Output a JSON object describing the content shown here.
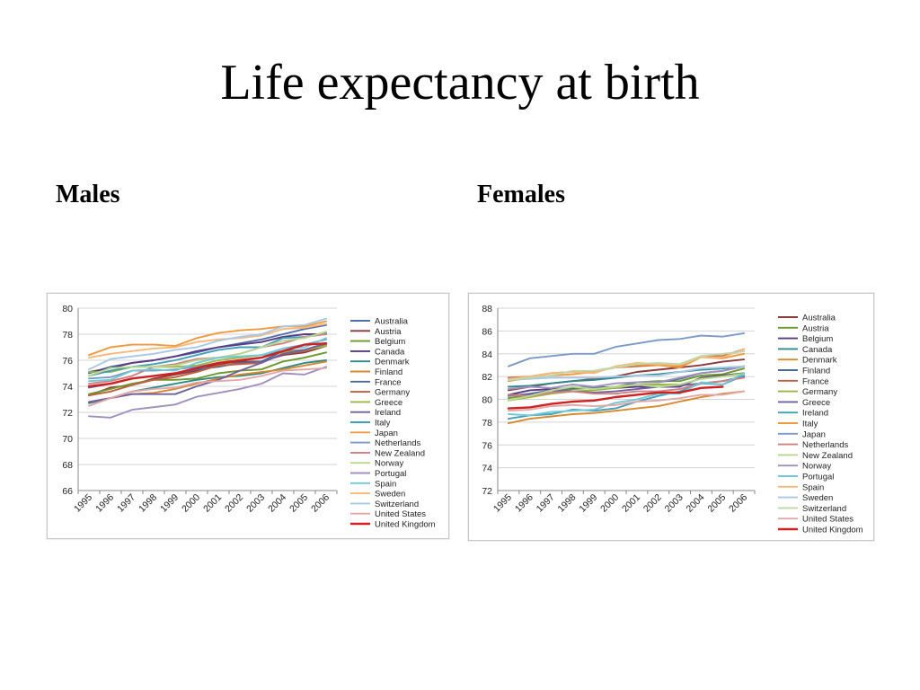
{
  "slide": {
    "title": "Life expectancy at birth",
    "males_heading": "Males",
    "females_heading": "Females"
  },
  "chart_data": [
    {
      "type": "line",
      "panel": "Males",
      "title": "",
      "xlabel": "",
      "ylabel": "",
      "x": [
        "1995",
        "1996",
        "1997",
        "1998",
        "1999",
        "2000",
        "2001",
        "2002",
        "2003",
        "2004",
        "2005",
        "2006"
      ],
      "ylim": [
        66,
        80
      ],
      "yticks": [
        66,
        68,
        70,
        72,
        74,
        76,
        78,
        80
      ],
      "grid": true,
      "legend": "right",
      "series": [
        {
          "name": "Australia",
          "color": "#4f6fad",
          "values": [
            75.0,
            75.5,
            75.8,
            76.0,
            76.3,
            76.6,
            77.0,
            77.3,
            77.6,
            78.0,
            78.4,
            78.7
          ]
        },
        {
          "name": "Austria",
          "color": "#8b3a3a",
          "values": [
            73.3,
            73.9,
            74.1,
            74.6,
            74.9,
            75.2,
            75.7,
            75.9,
            75.9,
            76.4,
            76.6,
            77.1
          ]
        },
        {
          "name": "Belgium",
          "color": "#6a9a2a",
          "values": [
            73.4,
            73.8,
            74.2,
            74.5,
            74.5,
            74.6,
            75.0,
            75.2,
            75.3,
            75.9,
            76.2,
            76.6
          ]
        },
        {
          "name": "Canada",
          "color": "#5a3a80",
          "values": [
            75.1,
            75.4,
            75.8,
            76.0,
            76.3,
            76.7,
            77.0,
            77.2,
            77.4,
            77.8,
            78.0,
            78.0
          ]
        },
        {
          "name": "Denmark",
          "color": "#2e8a8a",
          "values": [
            72.7,
            73.1,
            73.6,
            73.9,
            74.2,
            74.5,
            74.7,
            74.8,
            75.0,
            75.4,
            75.8,
            76.0
          ]
        },
        {
          "name": "Finland",
          "color": "#d9882d",
          "values": [
            72.8,
            73.1,
            73.4,
            73.5,
            73.8,
            74.2,
            74.6,
            74.9,
            75.1,
            75.3,
            75.6,
            75.9
          ]
        },
        {
          "name": "France",
          "color": "#4a6a9a",
          "values": [
            73.9,
            74.2,
            74.6,
            74.8,
            75.0,
            75.3,
            75.5,
            75.8,
            75.9,
            76.7,
            76.8,
            77.3
          ]
        },
        {
          "name": "Germany",
          "color": "#c06040",
          "values": [
            73.3,
            73.6,
            74.1,
            74.5,
            74.7,
            75.1,
            75.6,
            75.7,
            75.8,
            76.5,
            76.7,
            77.2
          ]
        },
        {
          "name": "Greece",
          "color": "#9ab840",
          "values": [
            75.1,
            75.1,
            75.5,
            75.5,
            75.5,
            75.6,
            76.0,
            76.2,
            76.4,
            76.6,
            76.8,
            77.1
          ]
        },
        {
          "name": "Ireland",
          "color": "#7060a0",
          "values": [
            72.8,
            73.1,
            73.4,
            73.4,
            73.4,
            74.0,
            74.5,
            75.2,
            75.8,
            76.5,
            76.8,
            77.3
          ]
        },
        {
          "name": "Italy",
          "color": "#40a0b8",
          "values": [
            74.8,
            75.2,
            75.5,
            75.7,
            76.0,
            76.4,
            76.8,
            77.0,
            77.0,
            77.7,
            77.8,
            78.1
          ]
        },
        {
          "name": "Japan",
          "color": "#f09a40",
          "values": [
            76.4,
            77.0,
            77.2,
            77.2,
            77.1,
            77.7,
            78.1,
            78.3,
            78.4,
            78.6,
            78.6,
            79.0
          ]
        },
        {
          "name": "Netherlands",
          "color": "#7a9ac8",
          "values": [
            74.6,
            74.7,
            75.2,
            75.2,
            75.3,
            75.5,
            75.8,
            76.0,
            76.2,
            76.9,
            77.2,
            77.6
          ]
        },
        {
          "name": "New Zealand",
          "color": "#d08080",
          "values": [
            74.2,
            74.4,
            74.8,
            75.5,
            75.7,
            76.1,
            76.2,
            76.5,
            77.0,
            77.3,
            77.8,
            78.0
          ]
        },
        {
          "name": "Norway",
          "color": "#b8d890",
          "values": [
            74.8,
            75.4,
            75.5,
            75.5,
            75.6,
            76.0,
            76.2,
            76.5,
            77.0,
            77.5,
            77.7,
            78.2
          ]
        },
        {
          "name": "Portugal",
          "color": "#a090c0",
          "values": [
            71.7,
            71.6,
            72.2,
            72.4,
            72.6,
            73.2,
            73.5,
            73.8,
            74.2,
            75.0,
            74.9,
            75.5
          ]
        },
        {
          "name": "Spain",
          "color": "#70c8d8",
          "values": [
            74.4,
            74.5,
            75.2,
            75.3,
            75.2,
            75.8,
            76.2,
            76.3,
            76.4,
            76.9,
            77.0,
            77.7
          ]
        },
        {
          "name": "Sweden",
          "color": "#f8b878",
          "values": [
            76.2,
            76.5,
            76.7,
            76.9,
            77.0,
            77.4,
            77.6,
            77.7,
            77.9,
            78.4,
            78.5,
            78.8
          ]
        },
        {
          "name": "Switzerland",
          "color": "#a8c8e8",
          "values": [
            75.3,
            76.1,
            76.3,
            76.5,
            76.8,
            77.0,
            77.5,
            77.8,
            78.0,
            78.6,
            78.7,
            79.2
          ]
        },
        {
          "name": "United States",
          "color": "#e0a8a8",
          "values": [
            72.5,
            73.1,
            73.6,
            73.8,
            73.9,
            74.3,
            74.4,
            74.5,
            74.8,
            75.2,
            75.3,
            75.4
          ]
        },
        {
          "name": "United Kingdom",
          "color": "#d02020",
          "values": [
            74.0,
            74.2,
            74.6,
            74.8,
            75.0,
            75.4,
            75.8,
            76.0,
            76.2,
            76.7,
            77.2,
            77.3
          ]
        }
      ]
    },
    {
      "type": "line",
      "panel": "Females",
      "title": "",
      "xlabel": "",
      "ylabel": "",
      "x": [
        "1995",
        "1996",
        "1997",
        "1998",
        "1999",
        "2000",
        "2001",
        "2002",
        "2003",
        "2004",
        "2005",
        "2006"
      ],
      "ylim": [
        72,
        88
      ],
      "yticks": [
        72,
        74,
        76,
        78,
        80,
        82,
        84,
        86,
        88
      ],
      "grid": true,
      "legend": "right",
      "series": [
        {
          "name": "Australia",
          "color": "#8b3a3a",
          "values": [
            80.8,
            81.1,
            81.4,
            81.6,
            81.8,
            82.0,
            82.4,
            82.6,
            82.8,
            83.0,
            83.3,
            83.5
          ]
        },
        {
          "name": "Austria",
          "color": "#6a9a2a",
          "values": [
            80.1,
            80.4,
            80.6,
            80.9,
            81.0,
            81.1,
            81.5,
            81.6,
            81.6,
            82.1,
            82.2,
            82.7
          ]
        },
        {
          "name": "Belgium",
          "color": "#5a3a80",
          "values": [
            80.4,
            80.8,
            80.9,
            81.0,
            81.1,
            81.0,
            81.1,
            81.1,
            81.1,
            81.9,
            82.1,
            82.3
          ]
        },
        {
          "name": "Canada",
          "color": "#2e8a8a",
          "values": [
            81.1,
            81.2,
            81.4,
            81.6,
            81.7,
            81.9,
            82.1,
            82.2,
            82.4,
            82.6,
            82.7,
            82.9
          ]
        },
        {
          "name": "Denmark",
          "color": "#d9882d",
          "values": [
            77.9,
            78.3,
            78.5,
            78.7,
            78.8,
            79.0,
            79.2,
            79.4,
            79.8,
            80.2,
            80.5,
            80.7
          ]
        },
        {
          "name": "Finland",
          "color": "#4a6a9a",
          "values": [
            80.3,
            80.5,
            80.8,
            81.0,
            81.1,
            81.0,
            81.5,
            81.5,
            81.8,
            82.3,
            82.5,
            82.9
          ]
        },
        {
          "name": "France",
          "color": "#c06040",
          "values": [
            81.9,
            82.0,
            82.3,
            82.4,
            82.5,
            82.8,
            82.9,
            83.0,
            82.9,
            83.8,
            83.8,
            84.4
          ]
        },
        {
          "name": "Germany",
          "color": "#9ab840",
          "values": [
            79.9,
            80.2,
            80.5,
            80.7,
            80.8,
            81.0,
            81.3,
            81.3,
            81.3,
            81.8,
            82.0,
            82.3
          ]
        },
        {
          "name": "Greece",
          "color": "#7060a0",
          "values": [
            80.4,
            80.4,
            80.8,
            80.7,
            80.6,
            80.7,
            80.9,
            81.1,
            81.2,
            81.4,
            81.6,
            82.0
          ]
        },
        {
          "name": "Ireland",
          "color": "#40a0b8",
          "values": [
            78.3,
            78.6,
            78.7,
            79.1,
            79.0,
            79.2,
            79.8,
            80.3,
            80.7,
            81.4,
            81.3,
            82.1
          ]
        },
        {
          "name": "Italy",
          "color": "#f09a40",
          "values": [
            81.6,
            81.9,
            82.1,
            82.2,
            82.4,
            82.8,
            83.0,
            83.0,
            82.8,
            83.7,
            83.6,
            84.0
          ]
        },
        {
          "name": "Japan",
          "color": "#7a9ac8",
          "values": [
            82.9,
            83.6,
            83.8,
            84.0,
            84.0,
            84.6,
            84.9,
            85.2,
            85.3,
            85.6,
            85.5,
            85.8
          ]
        },
        {
          "name": "Netherlands",
          "color": "#d08080",
          "values": [
            80.4,
            80.3,
            80.6,
            80.7,
            80.5,
            80.5,
            80.7,
            80.7,
            80.9,
            81.4,
            81.6,
            81.9
          ]
        },
        {
          "name": "New Zealand",
          "color": "#b8d890",
          "values": [
            79.9,
            80.3,
            80.8,
            81.1,
            80.9,
            81.1,
            81.3,
            81.1,
            81.3,
            81.8,
            82.0,
            82.2
          ]
        },
        {
          "name": "Norway",
          "color": "#a090c0",
          "values": [
            80.9,
            81.1,
            81.0,
            81.3,
            81.1,
            81.4,
            81.5,
            81.5,
            81.9,
            82.3,
            82.5,
            82.9
          ]
        },
        {
          "name": "Portugal",
          "color": "#70c8d8",
          "values": [
            78.7,
            78.6,
            78.9,
            79.0,
            79.1,
            79.7,
            80.0,
            80.5,
            80.5,
            81.5,
            81.3,
            82.3
          ]
        },
        {
          "name": "Spain",
          "color": "#f8b878",
          "values": [
            81.8,
            82.0,
            82.3,
            82.4,
            82.3,
            82.9,
            83.2,
            83.1,
            83.0,
            83.7,
            83.7,
            84.4
          ]
        },
        {
          "name": "Sweden",
          "color": "#a8c8e8",
          "values": [
            81.7,
            81.8,
            81.9,
            81.9,
            81.9,
            82.0,
            82.1,
            82.1,
            82.4,
            82.7,
            82.8,
            82.9
          ]
        },
        {
          "name": "Switzerland",
          "color": "#c0d8a8",
          "values": [
            81.7,
            81.9,
            82.1,
            82.5,
            82.5,
            82.8,
            83.1,
            83.2,
            83.1,
            83.8,
            84.0,
            84.2
          ]
        },
        {
          "name": "United States",
          "color": "#e0a8a8",
          "values": [
            79.0,
            79.1,
            79.4,
            79.5,
            79.4,
            79.5,
            79.8,
            79.9,
            80.1,
            80.4,
            80.4,
            80.7
          ]
        },
        {
          "name": "United Kingdom",
          "color": "#d02020",
          "values": [
            79.2,
            79.3,
            79.6,
            79.8,
            79.9,
            80.2,
            80.4,
            80.6,
            80.6,
            81.0,
            81.1,
            null
          ]
        }
      ]
    }
  ]
}
